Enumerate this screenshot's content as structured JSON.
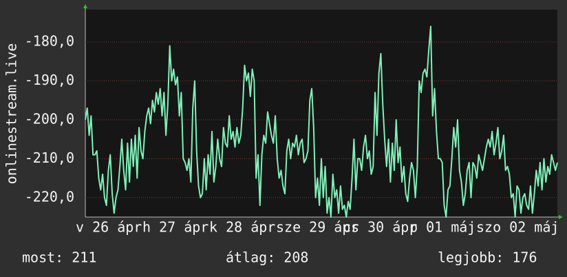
{
  "chart_data": {
    "type": "line",
    "ylabel": "onlinestream.live",
    "xlabels": [
      "v 26 ápr",
      "h 27 ápr",
      "k 28 ápr",
      "sze 29 ápr",
      "cs 30 ápr",
      "p 01 máj",
      "szo 02 máj"
    ],
    "ylim": [
      -225,
      -171.7
    ],
    "yticks": [
      {
        "value": -220,
        "label": "-220,0"
      },
      {
        "value": -210,
        "label": "-210,0"
      },
      {
        "value": -200,
        "label": "-200,0"
      },
      {
        "value": -190,
        "label": "-190,0"
      },
      {
        "value": -180,
        "label": "-180,0"
      }
    ],
    "grid": true,
    "series": [
      {
        "color": "#7ff0b8",
        "values": [
          -200,
          -197,
          -204,
          -199,
          -209,
          -209,
          -208,
          -215,
          -218,
          -214,
          -220,
          -222,
          -213,
          -209,
          -219,
          -224,
          -220,
          -218,
          -212,
          -205,
          -213,
          -218,
          -206,
          -216,
          -205,
          -212,
          -204,
          -215,
          -202,
          -208,
          -210,
          -203,
          -199,
          -197,
          -201,
          -195,
          -198,
          -193,
          -196,
          -192,
          -199,
          -193,
          -204,
          -196,
          -181,
          -190,
          -187,
          -191,
          -189,
          -199,
          -193,
          -210,
          -211,
          -213,
          -210,
          -216,
          -197,
          -190,
          -208,
          -217,
          -220,
          -219,
          -210,
          -218,
          -209,
          -214,
          -203,
          -216,
          -212,
          -205,
          -210,
          -212,
          -202,
          -206,
          -207,
          -199,
          -205,
          -203,
          -207,
          -202,
          -206,
          -204,
          -197,
          -186,
          -190,
          -188,
          -194,
          -187,
          -190,
          -215,
          -209,
          -222,
          -209,
          -204,
          -206,
          -198,
          -201,
          -204,
          -206,
          -199,
          -210,
          -215,
          -213,
          -217,
          -219,
          -208,
          -205,
          -210,
          -206,
          -207,
          -204,
          -209,
          -206,
          -205,
          -211,
          -210,
          -208,
          -195,
          -192,
          -202,
          -220,
          -215,
          -222,
          -210,
          -220,
          -212,
          -224,
          -220,
          -225,
          -214,
          -220,
          -218,
          -224,
          -217,
          -223,
          -222,
          -225,
          -221,
          -223,
          -215,
          -205,
          -218,
          -210,
          -210,
          -213,
          -207,
          -204,
          -210,
          -208,
          -214,
          -212,
          -193,
          -204,
          -188,
          -183,
          -196,
          -205,
          -212,
          -205,
          -216,
          -206,
          -213,
          -200,
          -211,
          -207,
          -216,
          -212,
          -219,
          -221,
          -215,
          -211,
          -213,
          -220,
          -212,
          -190,
          -193,
          -188,
          -187,
          -189,
          -182,
          -176,
          -199,
          -192,
          -203,
          -210,
          -210,
          -211,
          -222,
          -225,
          -218,
          -217,
          -210,
          -202,
          -207,
          -200,
          -213,
          -216,
          -222,
          -219,
          -213,
          -211,
          -220,
          -211,
          -212,
          -215,
          -209,
          -211,
          -213,
          -210,
          -207,
          -205,
          -207,
          -203,
          -209,
          -206,
          -202,
          -210,
          -208,
          -204,
          -213,
          -212,
          -214,
          -220,
          -219,
          -225,
          -217,
          -218,
          -224,
          -220,
          -219,
          -222,
          -223,
          -217,
          -224,
          -219,
          -213,
          -217,
          -211,
          -218,
          -210,
          -216,
          -212,
          -214,
          -209,
          -211,
          -213,
          -211
        ]
      }
    ]
  },
  "footer": {
    "current": "most: 211",
    "average": "átlag: 208",
    "best": "legjobb: 176"
  }
}
